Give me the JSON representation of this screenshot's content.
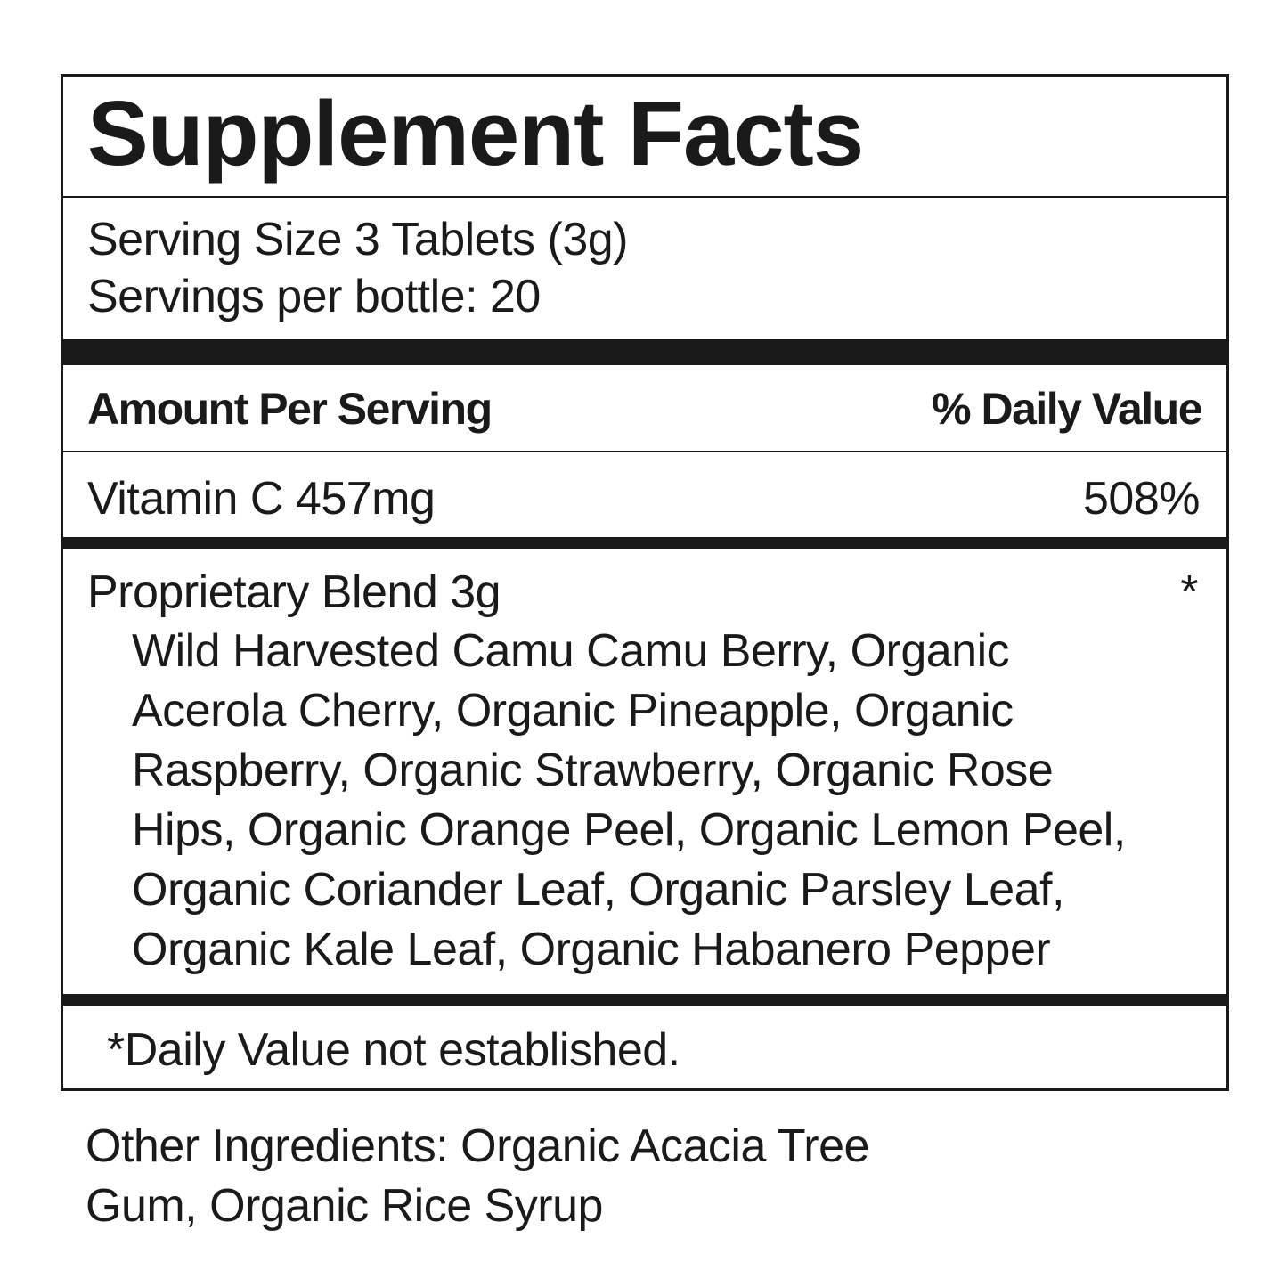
{
  "title": "Supplement Facts",
  "serving_size": "Serving Size 3 Tablets (3g)",
  "servings_per_container": "Servings per bottle: 20",
  "header": {
    "amount": "Amount Per Serving",
    "daily_value": "% Daily Value"
  },
  "nutrients": [
    {
      "name": "Vitamin C  457mg",
      "dv": "508%"
    }
  ],
  "blend": {
    "name": "Proprietary Blend  3g",
    "dv": "*",
    "ingredients_lines": [
      "Wild Harvested Camu Camu Berry, Organic",
      "Acerola Cherry, Organic Pineapple, Organic",
      "Raspberry, Organic Strawberry, Organic Rose",
      "Hips, Organic Orange Peel, Organic Lemon Peel,",
      "Organic Coriander Leaf, Organic Parsley Leaf,",
      "Organic Kale Leaf, Organic Habanero Pepper"
    ]
  },
  "footnote": "*Daily Value not established.",
  "other_ingredients_lines": [
    "Other Ingredients: Organic Acacia Tree",
    "Gum, Organic Rice Syrup"
  ]
}
